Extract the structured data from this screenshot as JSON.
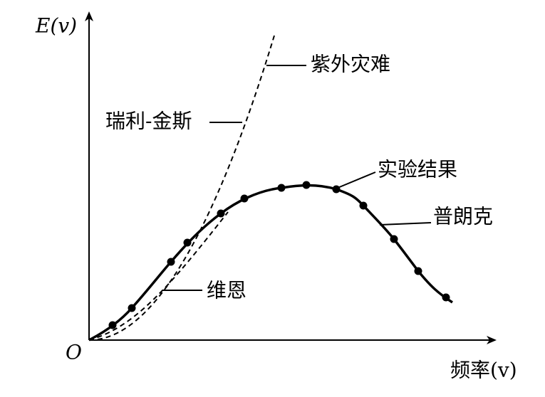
{
  "axes": {
    "y_label": "E(v)",
    "origin": "O",
    "x_label": "频率(v)"
  },
  "labels": {
    "ultraviolet": "紫外灾难",
    "rayleigh_jeans": "瑞利-金斯",
    "experiment": "实验结果",
    "planck": "普朗克",
    "wien": "维恩"
  }
}
